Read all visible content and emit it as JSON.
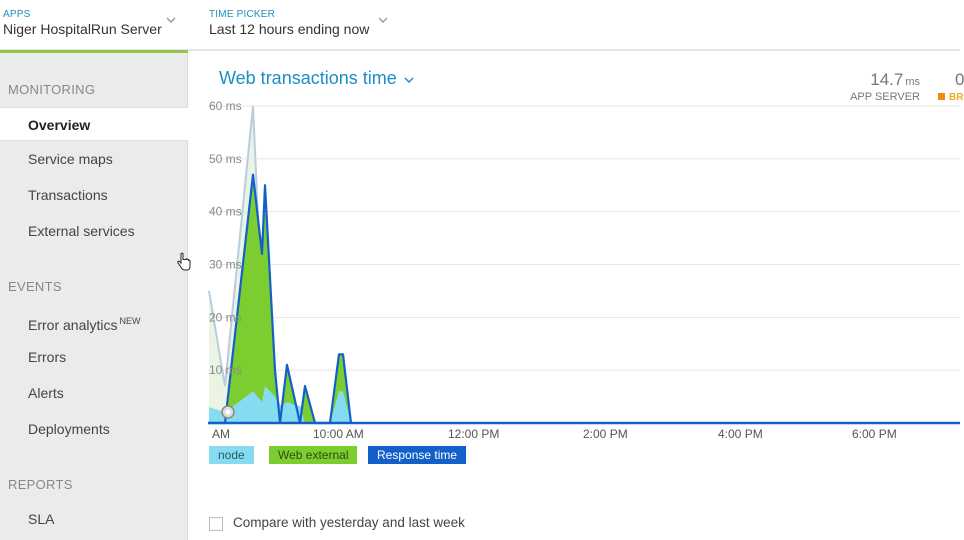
{
  "header": {
    "apps_label": "APPS",
    "app_name": "Niger HospitalRun Server",
    "time_picker_label": "TIME PICKER",
    "time_picker_value": "Last 12 hours ending now"
  },
  "sidebar": {
    "sections": [
      {
        "title": "MONITORING",
        "items": [
          {
            "label": "Overview",
            "active": true
          },
          {
            "label": "Service maps"
          },
          {
            "label": "Transactions"
          },
          {
            "label": "External services"
          }
        ]
      },
      {
        "title": "EVENTS",
        "items": [
          {
            "label": "Error analytics",
            "badge": "NEW"
          },
          {
            "label": "Errors"
          },
          {
            "label": "Alerts"
          },
          {
            "label": "Deployments"
          }
        ]
      },
      {
        "title": "REPORTS",
        "items": [
          {
            "label": "SLA"
          }
        ]
      }
    ]
  },
  "main": {
    "chart_title": "Web transactions time",
    "metric": {
      "value": "14.7",
      "unit": "ms",
      "label": "APP SERVER"
    },
    "metric_next": {
      "value": "0",
      "label": "BR"
    },
    "compare_label": "Compare with yesterday and last week"
  },
  "legend": [
    {
      "name": "node",
      "color": "#85dcf0"
    },
    {
      "name": "Web external",
      "color": "#7ccd2f"
    },
    {
      "name": "Response time",
      "color": "#1460c9"
    }
  ],
  "chart_data": {
    "type": "area",
    "title": "Web transactions time",
    "ylabel": "",
    "ylim": [
      0,
      60
    ],
    "y_ticks": [
      "10 ms",
      "20 ms",
      "30 ms",
      "40 ms",
      "50 ms",
      "60 ms"
    ],
    "x_ticks": [
      "AM",
      "10:00 AM",
      "12:00 PM",
      "2:00 PM",
      "4:00 PM",
      "6:00 PM"
    ],
    "x": [
      "8:00",
      "8:10",
      "8:20",
      "8:30",
      "8:40",
      "8:50",
      "9:00",
      "9:10",
      "9:20",
      "9:30",
      "9:40",
      "9:50",
      "10:00",
      "10:10",
      "10:20"
    ],
    "series": [
      {
        "name": "node",
        "values": [
          3,
          2,
          6,
          4,
          7,
          5,
          3,
          4,
          3,
          0,
          0,
          0,
          6,
          6,
          0
        ]
      },
      {
        "name": "Web external",
        "values": [
          0,
          0,
          40,
          30,
          42,
          10,
          0,
          6,
          0,
          0,
          0,
          0,
          7,
          7,
          0
        ]
      },
      {
        "name": "Response time",
        "values": [
          0,
          0,
          47,
          32,
          45,
          10,
          0,
          11,
          0,
          7,
          0,
          0,
          13,
          13,
          0
        ]
      }
    ],
    "comparison": {
      "name": "last week",
      "values": [
        25,
        7,
        60,
        22,
        15,
        6,
        3,
        4,
        3,
        0,
        0,
        0,
        0,
        0,
        0
      ]
    },
    "grid": true,
    "legend_position": "bottom-left"
  },
  "colors": {
    "accent": "#1d8ec5",
    "app_underline": "#8fc54b",
    "node": "#85dcf0",
    "web_external": "#7ccd2f",
    "response_time": "#1460c9",
    "comparison": "#b8cde0"
  }
}
